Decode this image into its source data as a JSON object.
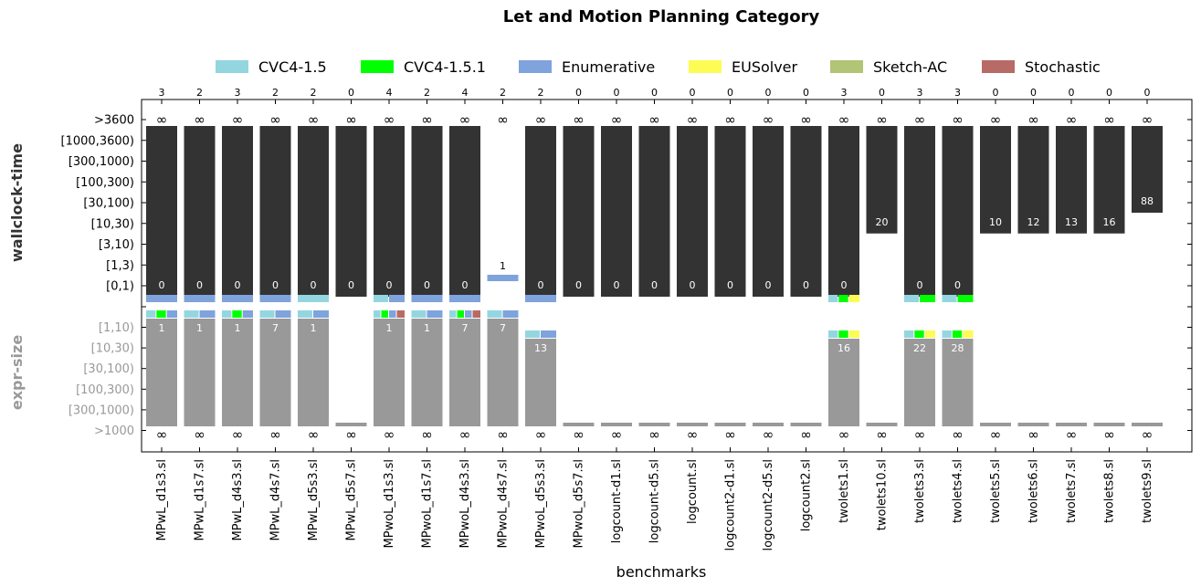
{
  "chart_data": {
    "type": "bar",
    "title": "Let and Motion Planning Category",
    "xlabel": "benchmarks",
    "ylabel_top": "wallclock-time",
    "ylabel_bottom": "expr-size",
    "time_ticks": [
      "[0,1)",
      "[1,3)",
      "[3,10)",
      "[10,30)",
      "[30,100)",
      "[100,300)",
      "[300,1000)",
      "[1000,3600)",
      ">3600"
    ],
    "size_ticks": [
      "[1,10)",
      "[10,30)",
      "[30,100)",
      "[100,300)",
      "[300,1000)",
      ">1000"
    ],
    "infinity_symbol": "∞",
    "legend": [
      {
        "name": "CVC4-1.5",
        "color": "#94d6e0"
      },
      {
        "name": "CVC4-1.5.1",
        "color": "#00ff00"
      },
      {
        "name": "Enumerative",
        "color": "#7fa3dc"
      },
      {
        "name": "EUSolver",
        "color": "#fdfc54"
      },
      {
        "name": "Sketch-AC",
        "color": "#b2c476"
      },
      {
        "name": "Stochastic",
        "color": "#b86b66"
      }
    ],
    "colors": {
      "time_bar": "#333333",
      "size_bar": "#999999"
    },
    "benchmarks": [
      {
        "name": "MPwL_d1s3.sl",
        "solved": 3,
        "time_label": "0",
        "time_level": 0,
        "time_solvers": [
          "Enumerative"
        ],
        "size_label": "1",
        "size_level": 0,
        "size_solvers": [
          "CVC4-1.5",
          "CVC4-1.5.1",
          "Enumerative"
        ]
      },
      {
        "name": "MPwL_d1s7.sl",
        "solved": 2,
        "time_label": "0",
        "time_level": 0,
        "time_solvers": [
          "Enumerative"
        ],
        "size_label": "1",
        "size_level": 0,
        "size_solvers": [
          "CVC4-1.5",
          "Enumerative"
        ]
      },
      {
        "name": "MPwL_d4s3.sl",
        "solved": 3,
        "time_label": "0",
        "time_level": 0,
        "time_solvers": [
          "Enumerative"
        ],
        "size_label": "1",
        "size_level": 0,
        "size_solvers": [
          "CVC4-1.5",
          "CVC4-1.5.1",
          "Enumerative"
        ]
      },
      {
        "name": "MPwL_d4s7.sl",
        "solved": 2,
        "time_label": "0",
        "time_level": 0,
        "time_solvers": [
          "Enumerative"
        ],
        "size_label": "7",
        "size_level": 0,
        "size_solvers": [
          "CVC4-1.5",
          "Enumerative"
        ]
      },
      {
        "name": "MPwL_d5s3.sl",
        "solved": 2,
        "time_label": "0",
        "time_level": 0,
        "time_solvers": [
          "CVC4-1.5"
        ],
        "size_label": "1",
        "size_level": 0,
        "size_solvers": [
          "CVC4-1.5",
          "Enumerative"
        ]
      },
      {
        "name": "MPwL_d5s7.sl",
        "solved": 0,
        "time_label": "0",
        "time_level": 0,
        "time_solvers": [],
        "size_label": "",
        "size_level": null,
        "size_solvers": []
      },
      {
        "name": "MPwoL_d1s3.sl",
        "solved": 4,
        "time_label": "0",
        "time_level": 0,
        "time_solvers": [
          "CVC4-1.5",
          "Enumerative"
        ],
        "size_label": "1",
        "size_level": 0,
        "size_solvers": [
          "CVC4-1.5",
          "CVC4-1.5.1",
          "Enumerative",
          "Stochastic"
        ]
      },
      {
        "name": "MPwoL_d1s7.sl",
        "solved": 2,
        "time_label": "0",
        "time_level": 0,
        "time_solvers": [
          "Enumerative"
        ],
        "size_label": "1",
        "size_level": 0,
        "size_solvers": [
          "CVC4-1.5",
          "Enumerative"
        ]
      },
      {
        "name": "MPwoL_d4s3.sl",
        "solved": 4,
        "time_label": "0",
        "time_level": 0,
        "time_solvers": [
          "Enumerative"
        ],
        "size_label": "7",
        "size_level": 0,
        "size_solvers": [
          "CVC4-1.5",
          "CVC4-1.5.1",
          "Enumerative",
          "Stochastic"
        ]
      },
      {
        "name": "MPwoL_d4s7.sl",
        "solved": 2,
        "time_label": "1",
        "time_level": 1,
        "time_solvers": [
          "Enumerative"
        ],
        "size_label": "7",
        "size_level": 0,
        "size_solvers": [
          "CVC4-1.5",
          "Enumerative"
        ]
      },
      {
        "name": "MPwoL_d5s3.sl",
        "solved": 2,
        "time_label": "0",
        "time_level": 0,
        "time_solvers": [
          "Enumerative"
        ],
        "size_label": "13",
        "size_level": 1,
        "size_solvers": [
          "CVC4-1.5",
          "Enumerative"
        ]
      },
      {
        "name": "MPwoL_d5s7.sl",
        "solved": 0,
        "time_label": "0",
        "time_level": 0,
        "time_solvers": [],
        "size_label": "",
        "size_level": null,
        "size_solvers": []
      },
      {
        "name": "logcount-d1.sl",
        "solved": 0,
        "time_label": "0",
        "time_level": 0,
        "time_solvers": [],
        "size_label": "",
        "size_level": null,
        "size_solvers": []
      },
      {
        "name": "logcount-d5.sl",
        "solved": 0,
        "time_label": "0",
        "time_level": 0,
        "time_solvers": [],
        "size_label": "",
        "size_level": null,
        "size_solvers": []
      },
      {
        "name": "logcount.sl",
        "solved": 0,
        "time_label": "0",
        "time_level": 0,
        "time_solvers": [],
        "size_label": "",
        "size_level": null,
        "size_solvers": []
      },
      {
        "name": "logcount2-d1.sl",
        "solved": 0,
        "time_label": "0",
        "time_level": 0,
        "time_solvers": [],
        "size_label": "",
        "size_level": null,
        "size_solvers": []
      },
      {
        "name": "logcount2-d5.sl",
        "solved": 0,
        "time_label": "0",
        "time_level": 0,
        "time_solvers": [],
        "size_label": "",
        "size_level": null,
        "size_solvers": []
      },
      {
        "name": "logcount2.sl",
        "solved": 0,
        "time_label": "0",
        "time_level": 0,
        "time_solvers": [],
        "size_label": "",
        "size_level": null,
        "size_solvers": []
      },
      {
        "name": "twolets1.sl",
        "solved": 3,
        "time_label": "0",
        "time_level": 0,
        "time_solvers": [
          "CVC4-1.5",
          "CVC4-1.5.1",
          "EUSolver"
        ],
        "size_label": "16",
        "size_level": 1,
        "size_solvers": [
          "CVC4-1.5",
          "CVC4-1.5.1",
          "EUSolver"
        ]
      },
      {
        "name": "twolets10.sl",
        "solved": 0,
        "time_label": "20",
        "time_level": 3,
        "time_solvers": [],
        "size_label": "",
        "size_level": null,
        "size_solvers": []
      },
      {
        "name": "twolets3.sl",
        "solved": 3,
        "time_label": "0",
        "time_level": 0,
        "time_solvers": [
          "CVC4-1.5",
          "CVC4-1.5.1"
        ],
        "size_label": "22",
        "size_level": 1,
        "size_solvers": [
          "CVC4-1.5",
          "CVC4-1.5.1",
          "EUSolver"
        ]
      },
      {
        "name": "twolets4.sl",
        "solved": 3,
        "time_label": "0",
        "time_level": 0,
        "time_solvers": [
          "CVC4-1.5",
          "CVC4-1.5.1"
        ],
        "size_label": "28",
        "size_level": 1,
        "size_solvers": [
          "CVC4-1.5",
          "CVC4-1.5.1",
          "EUSolver"
        ]
      },
      {
        "name": "twolets5.sl",
        "solved": 0,
        "time_label": "10",
        "time_level": 3,
        "time_solvers": [],
        "size_label": "",
        "size_level": null,
        "size_solvers": []
      },
      {
        "name": "twolets6.sl",
        "solved": 0,
        "time_label": "12",
        "time_level": 3,
        "time_solvers": [],
        "size_label": "",
        "size_level": null,
        "size_solvers": []
      },
      {
        "name": "twolets7.sl",
        "solved": 0,
        "time_label": "13",
        "time_level": 3,
        "time_solvers": [],
        "size_label": "",
        "size_level": null,
        "size_solvers": []
      },
      {
        "name": "twolets8.sl",
        "solved": 0,
        "time_label": "16",
        "time_level": 3,
        "time_solvers": [],
        "size_label": "",
        "size_level": null,
        "size_solvers": []
      },
      {
        "name": "twolets9.sl",
        "solved": 0,
        "time_label": "88",
        "time_level": 4,
        "time_solvers": [],
        "size_label": "",
        "size_level": null,
        "size_solvers": []
      }
    ]
  }
}
